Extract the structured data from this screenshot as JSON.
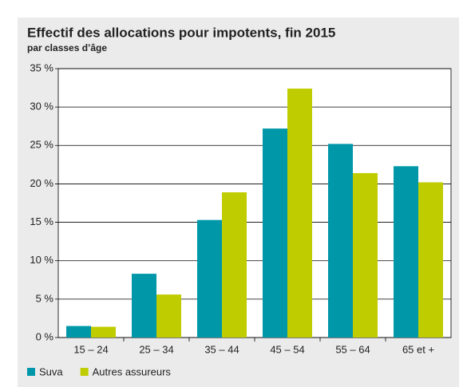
{
  "chart_data": {
    "type": "bar",
    "title": "Effectif des allocations pour impotents, fin 2015",
    "subtitle": "par classes d’âge",
    "categories": [
      "15 – 24",
      "25 – 34",
      "35 – 44",
      "45 – 54",
      "55 – 64",
      "65 et +"
    ],
    "series": [
      {
        "name": "Suva",
        "color": "#0097a9",
        "values": [
          1.5,
          8.3,
          15.3,
          27.2,
          25.2,
          22.3
        ]
      },
      {
        "name": "Autres assureurs",
        "color": "#bfcc00",
        "values": [
          1.4,
          5.6,
          18.9,
          32.4,
          21.4,
          20.2
        ]
      }
    ],
    "ylim": [
      0,
      35
    ],
    "yticks": [
      {
        "value": 0,
        "label": "0 %"
      },
      {
        "value": 5,
        "label": "5 %"
      },
      {
        "value": 10,
        "label": "10 %"
      },
      {
        "value": 15,
        "label": "15 %"
      },
      {
        "value": 20,
        "label": "20 %"
      },
      {
        "value": 25,
        "label": "25 %"
      },
      {
        "value": 30,
        "label": "30 %"
      },
      {
        "value": 35,
        "label": "35 %"
      }
    ],
    "grid": true
  }
}
